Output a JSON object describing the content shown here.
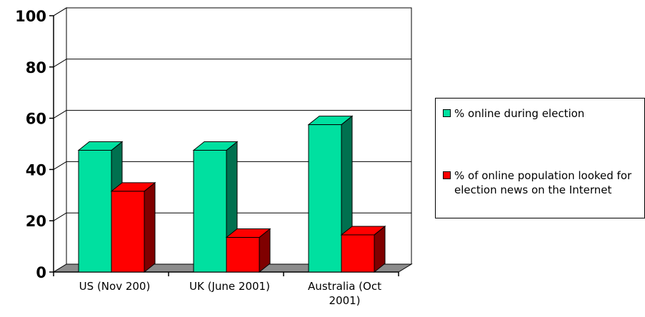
{
  "chart_data": {
    "type": "bar",
    "style": "3d-clustered-column",
    "categories": [
      "US (Nov 200)",
      "UK (June 2001)",
      "Australia (Oct 2001)"
    ],
    "series": [
      {
        "name": "% online during election",
        "values": [
          47.5,
          47.5,
          57.5
        ],
        "color": "#00E0A0"
      },
      {
        "name": "% of online population looked for election news on the Internet",
        "values": [
          31.5,
          13.5,
          14.5
        ],
        "color": "#FF0000"
      }
    ],
    "yticks": [
      "0",
      "20",
      "40",
      "60",
      "80",
      "100"
    ],
    "ylim": [
      0,
      100
    ],
    "grid": true,
    "legend_position": "right",
    "colors": {
      "floor": "#8C8C8C",
      "series1_side": "#00704F",
      "series2_side": "#7F0000"
    }
  }
}
